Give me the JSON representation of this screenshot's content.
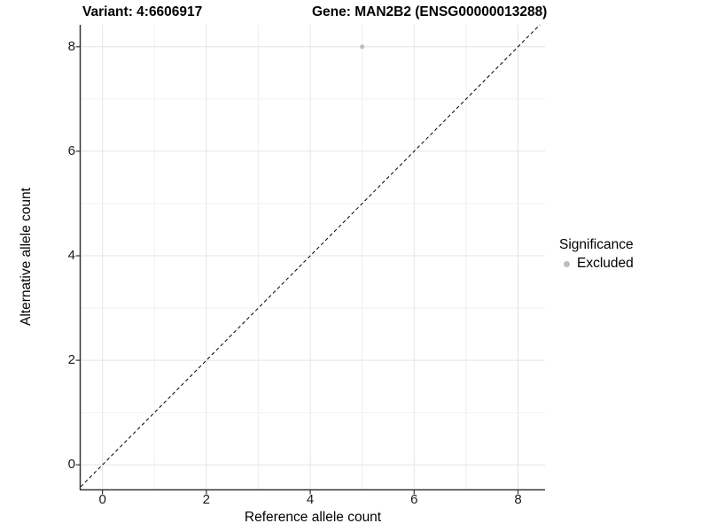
{
  "header": {
    "variant_title": "Variant: 4:6606917",
    "gene_title": "Gene: MAN2B2 (ENSG00000013288)"
  },
  "legend": {
    "title": "Significance",
    "items": [
      {
        "label": "Excluded",
        "color": "#bebebe"
      }
    ]
  },
  "colors": {
    "background": "#ffffff",
    "axis_line": "#333333",
    "grid_major": "#e4e4e4",
    "grid_minor": "#f0f0f0",
    "tick_text": "#1a1a1a",
    "point": "#bebebe",
    "reference_line": "#000000"
  },
  "chart_data": {
    "type": "scatter",
    "title": "Variant: 4:6606917 / Gene: MAN2B2 (ENSG00000013288)",
    "xlabel": "Reference allele count",
    "ylabel": "Alternative allele count",
    "xlim": [
      -0.42,
      8.52
    ],
    "ylim": [
      -0.47,
      8.42
    ],
    "x_ticks": [
      0,
      2,
      4,
      6,
      8
    ],
    "y_ticks": [
      0,
      2,
      4,
      6,
      8
    ],
    "x_minor_ticks": [
      1,
      3,
      5,
      7
    ],
    "y_minor_ticks": [
      1,
      3,
      5,
      7
    ],
    "grid": true,
    "legend_position": "right",
    "series": [
      {
        "name": "Excluded",
        "color": "#bebebe",
        "points": [
          {
            "x": 5,
            "y": 8
          }
        ]
      }
    ],
    "reference_line": {
      "kind": "identity",
      "slope": 1,
      "intercept": 0,
      "style": "dashed",
      "color": "#000000"
    }
  }
}
